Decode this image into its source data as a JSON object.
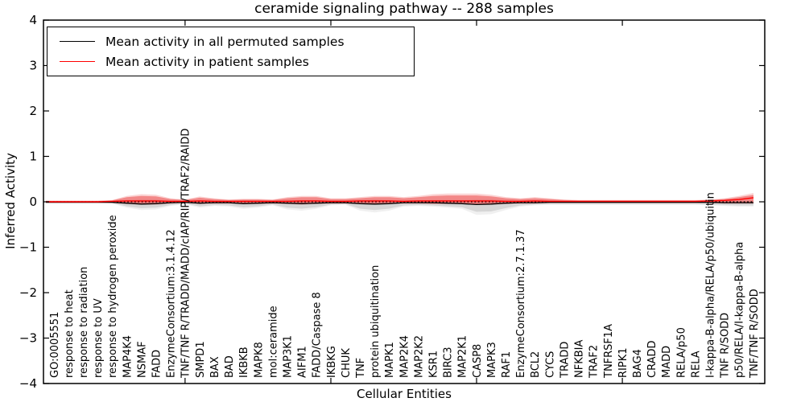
{
  "chart_data": {
    "type": "line",
    "title": "ceramide signaling pathway -- 288 samples",
    "xlabel": "Cellular Entities",
    "ylabel": "Inferred Activity",
    "ylim": [
      -4,
      4
    ],
    "ytick_values": [
      4,
      3,
      2,
      1,
      0,
      -1,
      -2,
      -3,
      -4
    ],
    "ytick_labels": [
      "4",
      "3",
      "2",
      "1",
      "0",
      "−1",
      "−2",
      "−3",
      "−4"
    ],
    "xtick_major_positions": [
      10,
      20,
      30,
      40
    ],
    "grid": false,
    "legend_position": "upper left",
    "legend": [
      {
        "label": "Mean activity in all permuted samples",
        "color": "#000000"
      },
      {
        "label": "Mean activity in patient samples",
        "color": "#ff0000"
      }
    ],
    "zero_line": {
      "value": 0,
      "style": "dotted",
      "color": "#000000"
    },
    "categories": [
      "GO:0005551",
      "response to heat",
      "response to radiation",
      "response to UV",
      "response to hydrogen peroxide",
      "MAP4K4",
      "NSMAF",
      "FADD",
      "EnzymeConsortium:3.1.4.12",
      "TNF/TNF R/TRADD/MADD/cIAP/RIP/TRAF2/RAIDD",
      "SMPD1",
      "BAX",
      "BAD",
      "IKBKB",
      "MAPK8",
      "mol:ceramide",
      "MAP3K1",
      "AIFM1",
      "FADD/Caspase 8",
      "IKBKG",
      "CHUK",
      "TNF",
      "protein ubiquitination",
      "MAPK1",
      "MAP2K4",
      "MAP2K2",
      "KSR1",
      "BIRC3",
      "MAP2K1",
      "CASP8",
      "MAPK3",
      "RAF1",
      "EnzymeConsortium:2.7.1.37",
      "BCL2",
      "CYCS",
      "TRADD",
      "NFKBIA",
      "TRAF2",
      "TNFRSF1A",
      "RIPK1",
      "BAG4",
      "CRADD",
      "MADD",
      "RELA/p50",
      "RELA",
      "I-kappa-B-alpha/RELA/p50/ubiquitin",
      "TNF R/SODD",
      "p50/RELA/I-kappa-B-alpha",
      "TNF/TNF R/SODD"
    ],
    "series": [
      {
        "name": "permuted",
        "legend_label": "Mean activity in all permuted samples",
        "line_color": "#000000",
        "band_color": "rgba(110,110,110,0.20)",
        "band_color_outer": "rgba(110,110,110,0.10)",
        "mean": [
          -0.01,
          -0.01,
          -0.01,
          -0.01,
          -0.01,
          -0.03,
          -0.05,
          -0.04,
          -0.02,
          -0.01,
          -0.03,
          -0.02,
          -0.02,
          -0.04,
          -0.03,
          -0.02,
          -0.03,
          -0.04,
          -0.03,
          -0.02,
          -0.02,
          -0.04,
          -0.05,
          -0.04,
          -0.02,
          -0.02,
          -0.02,
          -0.03,
          -0.04,
          -0.06,
          -0.05,
          -0.03,
          -0.02,
          -0.02,
          -0.01,
          -0.01,
          -0.01,
          -0.01,
          -0.01,
          -0.01,
          -0.01,
          -0.01,
          -0.01,
          -0.01,
          -0.01,
          -0.01,
          -0.02,
          -0.02,
          -0.02
        ],
        "band_upper": [
          0.01,
          0.01,
          0.01,
          0.01,
          0.02,
          0.03,
          0.04,
          0.04,
          0.02,
          0.02,
          0.03,
          0.02,
          0.02,
          0.03,
          0.03,
          0.02,
          0.03,
          0.03,
          0.03,
          0.02,
          0.02,
          0.03,
          0.04,
          0.03,
          0.02,
          0.02,
          0.03,
          0.03,
          0.03,
          0.04,
          0.04,
          0.03,
          0.02,
          0.02,
          0.02,
          0.01,
          0.01,
          0.01,
          0.01,
          0.01,
          0.01,
          0.01,
          0.01,
          0.01,
          0.01,
          0.01,
          0.02,
          0.02,
          0.02
        ],
        "band_lower": [
          -0.02,
          -0.02,
          -0.02,
          -0.02,
          -0.03,
          -0.1,
          -0.14,
          -0.13,
          -0.07,
          -0.04,
          -0.1,
          -0.07,
          -0.08,
          -0.12,
          -0.1,
          -0.06,
          -0.13,
          -0.15,
          -0.12,
          -0.06,
          -0.05,
          -0.15,
          -0.18,
          -0.15,
          -0.08,
          -0.07,
          -0.08,
          -0.1,
          -0.12,
          -0.22,
          -0.21,
          -0.14,
          -0.08,
          -0.06,
          -0.05,
          -0.05,
          -0.05,
          -0.05,
          -0.05,
          -0.05,
          -0.05,
          -0.05,
          -0.05,
          -0.05,
          -0.05,
          -0.06,
          -0.07,
          -0.08,
          -0.08
        ]
      },
      {
        "name": "patient",
        "legend_label": "Mean activity in patient samples",
        "line_color": "#ff0000",
        "band_color": "rgba(235,60,60,0.50)",
        "band_color_outer": "rgba(235,60,60,0.22)",
        "mean": [
          0.0,
          0.0,
          0.0,
          0.0,
          0.01,
          0.02,
          0.02,
          0.02,
          0.01,
          0.01,
          0.02,
          0.01,
          0.01,
          0.01,
          0.01,
          0.01,
          0.01,
          0.02,
          0.02,
          0.01,
          0.01,
          0.02,
          0.02,
          0.02,
          0.01,
          0.02,
          0.02,
          0.02,
          0.02,
          0.02,
          0.02,
          0.01,
          0.01,
          0.02,
          0.01,
          0.01,
          0.01,
          0.01,
          0.01,
          0.01,
          0.01,
          0.01,
          0.01,
          0.01,
          0.01,
          0.02,
          0.03,
          0.05,
          0.09
        ],
        "band_upper": [
          0.02,
          0.02,
          0.02,
          0.02,
          0.03,
          0.1,
          0.13,
          0.12,
          0.06,
          0.04,
          0.09,
          0.06,
          0.04,
          0.05,
          0.05,
          0.04,
          0.08,
          0.1,
          0.1,
          0.06,
          0.06,
          0.08,
          0.1,
          0.1,
          0.08,
          0.1,
          0.13,
          0.14,
          0.14,
          0.14,
          0.12,
          0.08,
          0.06,
          0.08,
          0.06,
          0.04,
          0.03,
          0.03,
          0.03,
          0.03,
          0.03,
          0.03,
          0.03,
          0.03,
          0.03,
          0.04,
          0.06,
          0.1,
          0.15
        ],
        "band_lower": [
          -0.01,
          -0.01,
          -0.01,
          -0.01,
          -0.02,
          -0.04,
          -0.05,
          -0.05,
          -0.03,
          -0.02,
          -0.04,
          -0.03,
          -0.03,
          -0.04,
          -0.04,
          -0.03,
          -0.04,
          -0.05,
          -0.04,
          -0.03,
          -0.03,
          -0.04,
          -0.05,
          -0.04,
          -0.03,
          -0.03,
          -0.04,
          -0.04,
          -0.04,
          -0.05,
          -0.05,
          -0.04,
          -0.03,
          -0.03,
          -0.02,
          -0.02,
          -0.02,
          -0.02,
          -0.02,
          -0.02,
          -0.02,
          -0.02,
          -0.02,
          -0.02,
          -0.02,
          -0.02,
          -0.03,
          -0.03,
          -0.03
        ]
      }
    ]
  }
}
